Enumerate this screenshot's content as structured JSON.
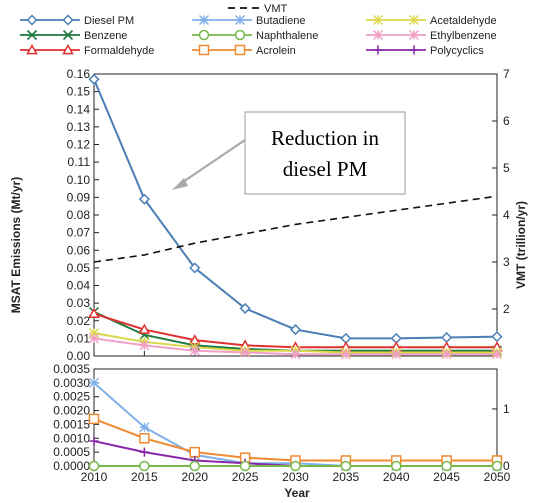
{
  "chart_data": {
    "type": "line",
    "xlabel": "Year",
    "ylabel_left": "MSAT Emissions (Mt/yr)",
    "ylabel_right": "VMT (trillion/yr)",
    "x": [
      2010,
      2015,
      2020,
      2025,
      2030,
      2035,
      2040,
      2045,
      2050
    ],
    "x_tick_labels": [
      "2010",
      "2015",
      "2020",
      "2025",
      "2030",
      "2035",
      "2040",
      "2045",
      "2050"
    ],
    "upper_panel": {
      "ylim": [
        0,
        0.16
      ],
      "y_tick_labels": [
        "0.00",
        "0.01",
        "0.02",
        "0.03",
        "0.04",
        "0.05",
        "0.06",
        "0.07",
        "0.08",
        "0.09",
        "0.10",
        "0.11",
        "0.12",
        "0.13",
        "0.14",
        "0.15",
        "0.16"
      ],
      "right_ylim": [
        1,
        7
      ],
      "right_tick_labels": [
        "2",
        "3",
        "4",
        "5",
        "6",
        "7"
      ],
      "series": [
        {
          "name": "Diesel PM",
          "color": "#4a7eb5",
          "marker": "diamond",
          "values": [
            0.157,
            0.089,
            0.05,
            0.027,
            0.015,
            0.01,
            0.01,
            0.0105,
            0.011
          ]
        },
        {
          "name": "Benzene",
          "color": "#1f7a3d",
          "marker": "x",
          "values": [
            0.025,
            0.012,
            0.006,
            0.004,
            0.003,
            0.003,
            0.003,
            0.003,
            0.003
          ]
        },
        {
          "name": "Formaldehyde",
          "color": "#e03030",
          "marker": "triangle",
          "values": [
            0.024,
            0.015,
            0.009,
            0.006,
            0.005,
            0.005,
            0.005,
            0.005,
            0.005
          ]
        },
        {
          "name": "Acetaldehyde",
          "color": "#d8d84a",
          "marker": "asterisk",
          "values": [
            0.013,
            0.008,
            0.005,
            0.003,
            0.003,
            0.002,
            0.002,
            0.002,
            0.002
          ]
        },
        {
          "name": "Ethylbenzene",
          "color": "#f0a0c8",
          "marker": "asterisk",
          "values": [
            0.01,
            0.006,
            0.003,
            0.002,
            0.001,
            0.001,
            0.001,
            0.001,
            0.001
          ]
        },
        {
          "name": "VMT",
          "color": "#111111",
          "axis": "right",
          "dashed": true,
          "values": [
            3.0,
            3.15,
            3.4,
            3.6,
            3.8,
            3.95,
            4.1,
            4.25,
            4.4
          ]
        }
      ]
    },
    "lower_panel": {
      "ylim": [
        0,
        0.0035
      ],
      "y_tick_labels": [
        "0.0000",
        "0.0005",
        "0.0010",
        "0.0015",
        "0.0020",
        "0.0025",
        "0.0030",
        "0.0035"
      ],
      "right_ylim": [
        0,
        1.7
      ],
      "right_tick_labels": [
        "0",
        "1"
      ],
      "series": [
        {
          "name": "Butadiene",
          "color": "#7fb0e8",
          "marker": "asterisk",
          "values": [
            0.003,
            0.0014,
            0.0004,
            0.0001,
            0.0001,
            0.0,
            0.0,
            0.0,
            0.0
          ]
        },
        {
          "name": "Acrolein",
          "color": "#f08a30",
          "marker": "square",
          "values": [
            0.0017,
            0.001,
            0.0005,
            0.0003,
            0.0002,
            0.0002,
            0.0002,
            0.0002,
            0.0002
          ]
        },
        {
          "name": "Polycyclics",
          "color": "#8a2aa8",
          "marker": "plus",
          "values": [
            0.0009,
            0.0005,
            0.0002,
            0.0001,
            0.0,
            0.0,
            0.0,
            0.0,
            0.0
          ]
        },
        {
          "name": "Naphthalene",
          "color": "#77b84a",
          "marker": "circle",
          "values": [
            0.0,
            0.0,
            0.0,
            0.0,
            0.0,
            0.0,
            0.0,
            0.0,
            0.0
          ]
        }
      ]
    },
    "legend": {
      "placement": "top",
      "entries": [
        {
          "name": "VMT",
          "color": "#111111",
          "marker": "none",
          "dashed": true
        },
        {
          "name": "Diesel PM",
          "color": "#4a7eb5",
          "marker": "diamond"
        },
        {
          "name": "Butadiene",
          "color": "#7fb0e8",
          "marker": "asterisk"
        },
        {
          "name": "Acetaldehyde",
          "color": "#d8d84a",
          "marker": "asterisk"
        },
        {
          "name": "Benzene",
          "color": "#1f7a3d",
          "marker": "x"
        },
        {
          "name": "Naphthalene",
          "color": "#77b84a",
          "marker": "circle"
        },
        {
          "name": "Ethylbenzene",
          "color": "#f0a0c8",
          "marker": "asterisk"
        },
        {
          "name": "Formaldehyde",
          "color": "#e03030",
          "marker": "triangle"
        },
        {
          "name": "Acrolein",
          "color": "#f08a30",
          "marker": "square"
        },
        {
          "name": "Polycyclics",
          "color": "#8a2aa8",
          "marker": "plus"
        }
      ]
    },
    "annotation": {
      "lines": [
        "Reduction in",
        "diesel PM"
      ],
      "points_to": "Diesel PM"
    },
    "grid": false
  }
}
